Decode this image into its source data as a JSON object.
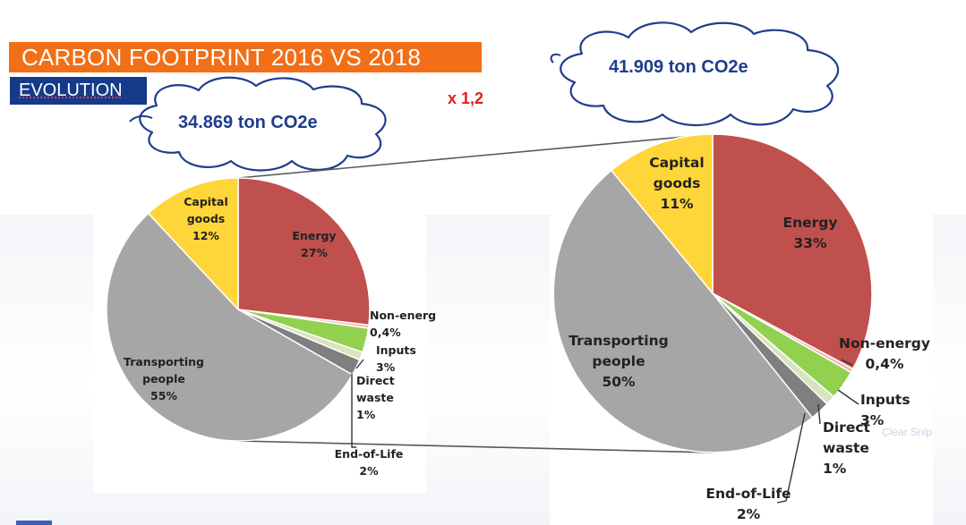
{
  "header": {
    "title": "CARBON FOOTPRINT 2016 VS 2018",
    "subtitle": "EVOLUTION",
    "factor": "x 1,2"
  },
  "clouds": {
    "left_label": "34.869 ton CO2e",
    "right_label": "41.909 ton CO2e"
  },
  "watermark": "Clear Snip",
  "colors": {
    "title_bg": "#f26f17",
    "subtitle_bg": "#153a8a",
    "cloud_text": "#1f3d8c",
    "factor_text": "#e21e1e",
    "energy": "#c0504d",
    "non_energy": "#f4b6b4",
    "inputs": "#92d050",
    "direct_waste": "#d7e4bd",
    "end_of_life": "#7f7f7f",
    "transporting_people": "#a6a6a6",
    "capital_goods": "#ffd63a"
  },
  "chart_data": [
    {
      "type": "pie",
      "title": "",
      "slices": [
        {
          "key": "energy",
          "label_lines": [
            "Energy",
            "27%"
          ],
          "value": 27,
          "color": "#c0504d"
        },
        {
          "key": "non_energy",
          "label_lines": [
            "Non-energ",
            "0,4%"
          ],
          "value": 0.4,
          "color": "#f4b6b4"
        },
        {
          "key": "inputs",
          "label_lines": [
            "Inputs",
            "3%"
          ],
          "value": 3,
          "color": "#92d050"
        },
        {
          "key": "direct_waste",
          "label_lines": [
            "Direct",
            "waste",
            "1%"
          ],
          "value": 1,
          "color": "#d7e4bd"
        },
        {
          "key": "end_of_life",
          "label_lines": [
            "End-of-Life",
            "2%"
          ],
          "value": 2,
          "color": "#7f7f7f"
        },
        {
          "key": "transporting_people",
          "label_lines": [
            "Transporting",
            "people",
            "55%"
          ],
          "value": 55,
          "color": "#a6a6a6"
        },
        {
          "key": "capital_goods",
          "label_lines": [
            "Capital",
            "goods",
            "12%"
          ],
          "value": 12,
          "color": "#ffd63a"
        }
      ]
    },
    {
      "type": "pie",
      "title": "",
      "slices": [
        {
          "key": "energy",
          "label_lines": [
            "Energy",
            "33%"
          ],
          "value": 33,
          "color": "#c0504d"
        },
        {
          "key": "non_energy",
          "label_lines": [
            "Non-energy",
            "0,4%"
          ],
          "value": 0.4,
          "color": "#f4b6b4"
        },
        {
          "key": "inputs",
          "label_lines": [
            "Inputs",
            "3%"
          ],
          "value": 3,
          "color": "#92d050"
        },
        {
          "key": "direct_waste",
          "label_lines": [
            "Direct",
            "waste",
            "1%"
          ],
          "value": 1,
          "color": "#d7e4bd"
        },
        {
          "key": "end_of_life",
          "label_lines": [
            "End-of-Life",
            "2%"
          ],
          "value": 2,
          "color": "#7f7f7f"
        },
        {
          "key": "transporting_people",
          "label_lines": [
            "Transporting",
            "people",
            "50%"
          ],
          "value": 50,
          "color": "#a6a6a6"
        },
        {
          "key": "capital_goods",
          "label_lines": [
            "Capital",
            "goods",
            "11%"
          ],
          "value": 11,
          "color": "#ffd63a"
        }
      ]
    }
  ]
}
